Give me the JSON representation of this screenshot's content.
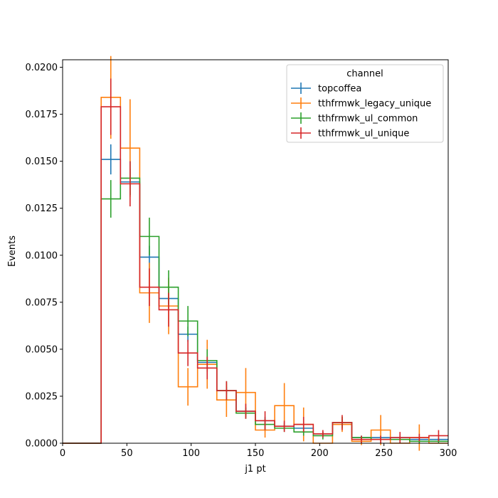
{
  "chart_data": {
    "type": "histogram-step",
    "title": "",
    "xlabel": "j1 pt",
    "ylabel": "Events",
    "xlim": [
      0,
      300
    ],
    "ylim": [
      0,
      0.0204
    ],
    "xticks": [
      0,
      50,
      100,
      150,
      200,
      250,
      300
    ],
    "xtick_labels": [
      "0",
      "50",
      "100",
      "150",
      "200",
      "250",
      "300"
    ],
    "yticks": [
      0,
      0.0025,
      0.005,
      0.0075,
      0.01,
      0.0125,
      0.015,
      0.0175,
      0.02
    ],
    "ytick_labels": [
      "0.0000",
      "0.0025",
      "0.0050",
      "0.0075",
      "0.0100",
      "0.0125",
      "0.0150",
      "0.0175",
      "0.0200"
    ],
    "grid": false,
    "legend": {
      "title": "channel",
      "placement": "top-right"
    },
    "bin_edges": [
      0,
      15,
      30,
      45,
      60,
      75,
      90,
      105,
      120,
      135,
      150,
      165,
      180,
      195,
      210,
      225,
      240,
      255,
      270,
      285,
      300
    ],
    "series": [
      {
        "name": "topcoffea",
        "color": "#1f77b4",
        "values": [
          0,
          0,
          0.0151,
          0.0139,
          0.0099,
          0.0077,
          0.0058,
          0.0043,
          0.0028,
          0.0017,
          0.0012,
          0.0009,
          0.0008,
          0.0005,
          0.0011,
          0.0003,
          0.0003,
          0.0003,
          0.0002,
          0.0002
        ],
        "errors": [
          0,
          0,
          0.0008,
          0.0007,
          0.0006,
          0.0005,
          0.0004,
          0.0003,
          0.0002,
          0.0002,
          0.0002,
          0.0002,
          0.0002,
          0.0001,
          0.0002,
          0.0001,
          0.0001,
          0.0001,
          0.0001,
          0.0001
        ]
      },
      {
        "name": "tthfrmwk_legacy_unique",
        "color": "#ff7f0e",
        "values": [
          0,
          0,
          0.0184,
          0.0157,
          0.008,
          0.0073,
          0.003,
          0.0042,
          0.0023,
          0.0027,
          0.0007,
          0.002,
          0.001,
          0,
          0.001,
          0.0001,
          0.0007,
          0,
          0.0003,
          0
        ],
        "errors": [
          0,
          0,
          0.0022,
          0.0026,
          0.0016,
          0.0015,
          0.001,
          0.0013,
          0.0009,
          0.0013,
          0.0004,
          0.0012,
          0.0009,
          0,
          0.0004,
          0.0002,
          0.0008,
          0,
          0.0007,
          0
        ]
      },
      {
        "name": "tthfrmwk_ul_common",
        "color": "#2ca02c",
        "values": [
          0,
          0,
          0.013,
          0.0141,
          0.011,
          0.0083,
          0.0065,
          0.0044,
          0.0028,
          0.0016,
          0.001,
          0.0008,
          0.0006,
          0.0004,
          0.0011,
          0.0003,
          0.0002,
          0.0002,
          0.0001,
          0.0001
        ],
        "errors": [
          0,
          0,
          0.001,
          0.0009,
          0.001,
          0.0009,
          0.0008,
          0.0006,
          0.0005,
          0.0003,
          0.0003,
          0.0002,
          0.0002,
          0.0002,
          0.0003,
          0.0001,
          0.0001,
          0.0001,
          0.0001,
          0.0001
        ]
      },
      {
        "name": "tthfrmwk_ul_unique",
        "color": "#d62728",
        "values": [
          0,
          0,
          0.0179,
          0.0138,
          0.0083,
          0.0071,
          0.0048,
          0.004,
          0.0028,
          0.0017,
          0.0012,
          0.0009,
          0.001,
          0.0005,
          0.0011,
          0.0002,
          0.0002,
          0.0003,
          0.0003,
          0.0004
        ],
        "errors": [
          0,
          0,
          0.0015,
          0.0012,
          0.001,
          0.0009,
          0.0007,
          0.0006,
          0.0005,
          0.0004,
          0.0005,
          0.0003,
          0.0004,
          0.0002,
          0.0004,
          0.0002,
          0.0002,
          0.0003,
          0.0002,
          0.0003
        ]
      }
    ]
  }
}
